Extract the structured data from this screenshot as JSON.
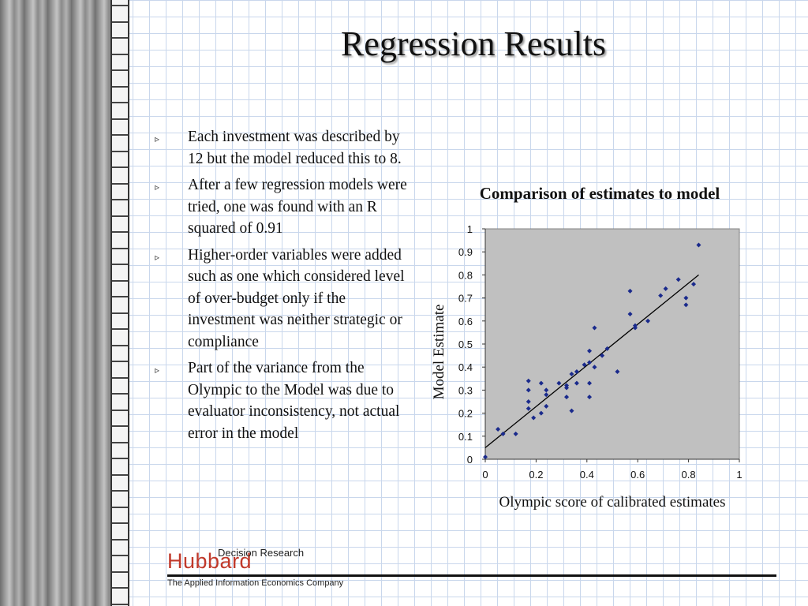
{
  "slide": {
    "title": "Regression Results",
    "bullets": [
      "Each investment was described by 12 but the model reduced this to 8.",
      "After a few regression models were tried, one was found with an R squared of 0.91",
      "Higher-order variables were added such as one which considered level of over-budget only if the investment was neither strategic or compliance",
      "Part of the variance from the Olympic to the Model was due to evaluator inconsistency, not actual error in the model"
    ],
    "bullet_marker": "▹"
  },
  "footer": {
    "logo_main": "Hubbard",
    "logo_top": "Decision Research",
    "tagline": "The Applied Information Economics Company",
    "logo_color": "#c0392b"
  },
  "chart_data": {
    "type": "scatter",
    "title": "Comparison of estimates to model",
    "xlabel": "Olympic score of calibrated estimates",
    "ylabel": "Model Estimate",
    "xlim": [
      0,
      1
    ],
    "ylim": [
      0,
      1
    ],
    "x_ticks": [
      "0",
      "0.2",
      "0.4",
      "0.6",
      "0.8",
      "1"
    ],
    "y_ticks": [
      "0",
      "0.1",
      "0.2",
      "0.3",
      "0.4",
      "0.5",
      "0.6",
      "0.7",
      "0.8",
      "0.9",
      "1"
    ],
    "grid": false,
    "plot_background": "#c0c0c0",
    "marker_color": "#1a2a8c",
    "points": [
      [
        0.0,
        0.01
      ],
      [
        0.05,
        0.13
      ],
      [
        0.07,
        0.11
      ],
      [
        0.12,
        0.11
      ],
      [
        0.17,
        0.34
      ],
      [
        0.17,
        0.3
      ],
      [
        0.17,
        0.25
      ],
      [
        0.17,
        0.22
      ],
      [
        0.19,
        0.18
      ],
      [
        0.22,
        0.33
      ],
      [
        0.22,
        0.2
      ],
      [
        0.24,
        0.3
      ],
      [
        0.24,
        0.28
      ],
      [
        0.24,
        0.23
      ],
      [
        0.29,
        0.33
      ],
      [
        0.32,
        0.32
      ],
      [
        0.32,
        0.31
      ],
      [
        0.32,
        0.27
      ],
      [
        0.34,
        0.37
      ],
      [
        0.34,
        0.21
      ],
      [
        0.36,
        0.38
      ],
      [
        0.36,
        0.33
      ],
      [
        0.39,
        0.41
      ],
      [
        0.41,
        0.47
      ],
      [
        0.41,
        0.42
      ],
      [
        0.41,
        0.33
      ],
      [
        0.41,
        0.27
      ],
      [
        0.43,
        0.57
      ],
      [
        0.43,
        0.4
      ],
      [
        0.46,
        0.45
      ],
      [
        0.48,
        0.48
      ],
      [
        0.52,
        0.38
      ],
      [
        0.57,
        0.73
      ],
      [
        0.57,
        0.63
      ],
      [
        0.59,
        0.58
      ],
      [
        0.59,
        0.57
      ],
      [
        0.64,
        0.6
      ],
      [
        0.69,
        0.71
      ],
      [
        0.71,
        0.74
      ],
      [
        0.76,
        0.78
      ],
      [
        0.79,
        0.7
      ],
      [
        0.79,
        0.67
      ],
      [
        0.82,
        0.76
      ],
      [
        0.84,
        0.93
      ]
    ],
    "trendline": [
      [
        0.0,
        0.05
      ],
      [
        0.84,
        0.8
      ]
    ]
  }
}
